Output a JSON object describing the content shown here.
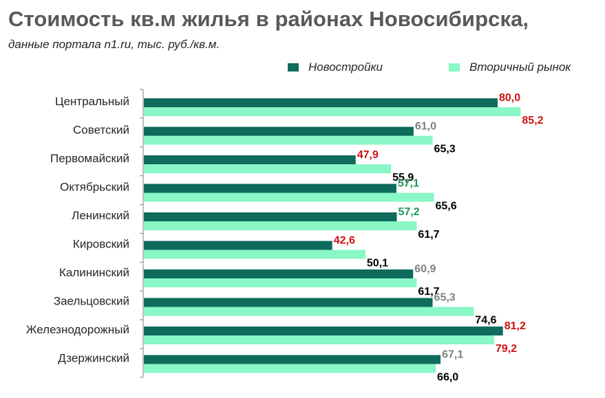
{
  "title": "Стоимость кв.м жилья в районах Новосибирска,",
  "subtitle": "данные портала n1.ru, тыс. руб./кв.м.",
  "colors": {
    "new": "#0f6b5c",
    "secondary": "#8af7c6",
    "axis": "#808080",
    "label_red": "#d01010",
    "label_green": "#1a9a5a",
    "label_gray": "#808080",
    "label_black": "#000000"
  },
  "chart_data": {
    "type": "bar",
    "orientation": "horizontal",
    "title": "Стоимость кв.м жилья в районах Новосибирска,",
    "subtitle": "данные портала n1.ru, тыс. руб./кв.м.",
    "xlabel": "",
    "ylabel": "",
    "xlim": [
      0,
      90
    ],
    "grid": false,
    "legend_position": "top-right",
    "categories": [
      "Центральный",
      "Советский",
      "Первомайский",
      "Октябрьский",
      "Ленинский",
      "Кировский",
      "Калининский",
      "Заельцовский",
      "Железнодорожный",
      "Дзержинский"
    ],
    "series": [
      {
        "name": "Новостройки",
        "color": "#0f6b5c",
        "values": [
          80.0,
          61.0,
          47.9,
          57.1,
          57.2,
          42.6,
          60.9,
          65.3,
          81.2,
          67.1
        ],
        "labels": [
          "80,0",
          "61,0",
          "47,9",
          "57,1",
          "57,2",
          "42,6",
          "60,9",
          "65,3",
          "81,2",
          "67,1"
        ],
        "label_colors": [
          "red",
          "gray",
          "red",
          "green",
          "green",
          "red",
          "gray",
          "gray",
          "red",
          "gray"
        ]
      },
      {
        "name": "Вторичный рынок",
        "color": "#8af7c6",
        "values": [
          85.2,
          65.3,
          55.9,
          65.6,
          61.7,
          50.1,
          61.7,
          74.6,
          79.2,
          66.0
        ],
        "labels": [
          "85,2",
          "65,3",
          "55,9",
          "65,6",
          "61,7",
          "50,1",
          "61,7",
          "74,6",
          "79,2",
          "66,0"
        ],
        "label_colors": [
          "red",
          "black",
          "black",
          "black",
          "black",
          "black",
          "black",
          "black",
          "red",
          "black"
        ]
      }
    ]
  }
}
